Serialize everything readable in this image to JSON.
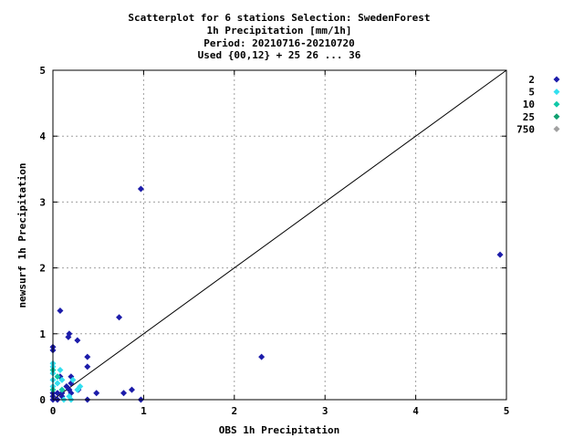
{
  "chart_data": {
    "type": "scatter",
    "title_lines": [
      "Scatterplot for    6 stations Selection: SwedenForest",
      "1h Precipitation [mm/1h]",
      "Period: 20210716-20210720",
      "Used {00,12} + 25 26 ... 36"
    ],
    "xlabel": "OBS 1h Precipitation",
    "ylabel": "newsurf 1h Precipitation",
    "xlim": [
      0,
      5
    ],
    "ylim": [
      0,
      5
    ],
    "xticks": [
      "0",
      "1",
      "2",
      "3",
      "4",
      "5"
    ],
    "yticks": [
      "0",
      "1",
      "2",
      "3",
      "4",
      "5"
    ],
    "grid": true,
    "legend_position": "right",
    "reference_line": "y = x",
    "series": [
      {
        "name": "2",
        "color": "#1c1caa",
        "points": [
          [
            0.0,
            0.0
          ],
          [
            0.0,
            0.05
          ],
          [
            0.0,
            0.1
          ],
          [
            0.0,
            0.75
          ],
          [
            0.0,
            0.8
          ],
          [
            0.05,
            0.0
          ],
          [
            0.05,
            0.1
          ],
          [
            0.08,
            1.35
          ],
          [
            0.08,
            0.35
          ],
          [
            0.1,
            0.05
          ],
          [
            0.1,
            0.1
          ],
          [
            0.15,
            0.2
          ],
          [
            0.17,
            0.95
          ],
          [
            0.18,
            1.0
          ],
          [
            0.18,
            0.15
          ],
          [
            0.2,
            0.1
          ],
          [
            0.2,
            0.35
          ],
          [
            0.2,
            0.25
          ],
          [
            0.27,
            0.9
          ],
          [
            0.28,
            0.15
          ],
          [
            0.38,
            0.0
          ],
          [
            0.38,
            0.5
          ],
          [
            0.38,
            0.65
          ],
          [
            0.48,
            0.1
          ],
          [
            0.73,
            1.25
          ],
          [
            0.78,
            0.1
          ],
          [
            0.87,
            0.15
          ],
          [
            0.97,
            0.0
          ],
          [
            0.97,
            3.2
          ],
          [
            2.3,
            0.65
          ],
          [
            4.93,
            2.2
          ]
        ]
      },
      {
        "name": "5",
        "color": "#33e0f0",
        "points": [
          [
            0.0,
            0.2
          ],
          [
            0.0,
            0.3
          ],
          [
            0.0,
            0.4
          ],
          [
            0.0,
            0.5
          ],
          [
            0.0,
            0.55
          ],
          [
            0.05,
            0.25
          ],
          [
            0.08,
            0.45
          ],
          [
            0.1,
            0.3
          ],
          [
            0.12,
            0.0
          ],
          [
            0.18,
            0.05
          ],
          [
            0.2,
            0.0
          ],
          [
            0.22,
            0.3
          ],
          [
            0.27,
            0.15
          ],
          [
            0.3,
            0.2
          ]
        ]
      },
      {
        "name": "10",
        "color": "#10c8a8",
        "points": [
          [
            0.0,
            0.15
          ],
          [
            0.0,
            0.45
          ],
          [
            0.05,
            0.35
          ],
          [
            0.1,
            0.15
          ]
        ]
      },
      {
        "name": "25",
        "color": "#10a070",
        "points": []
      },
      {
        "name": "750",
        "color": "#a0a0a0",
        "points": []
      }
    ]
  }
}
